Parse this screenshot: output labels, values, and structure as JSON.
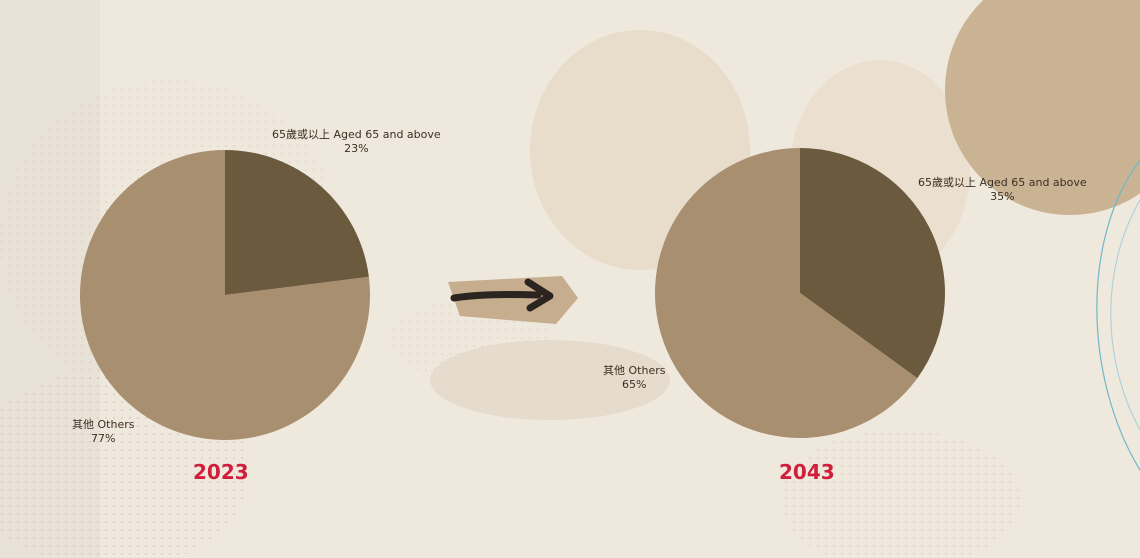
{
  "chart_data": [
    {
      "type": "pie",
      "title": "2023",
      "slices": [
        {
          "label": "65歲或以上 Aged 65 and above",
          "value": 23,
          "value_label": "23%",
          "color": "#6b5a3e"
        },
        {
          "label": "其他 Others",
          "value": 77,
          "value_label": "77%",
          "color": "#a88f70"
        }
      ]
    },
    {
      "type": "pie",
      "title": "2043",
      "slices": [
        {
          "label": "65歲或以上 Aged 65 and above",
          "value": 35,
          "value_label": "35%",
          "color": "#6b5a3e"
        },
        {
          "label": "其他 Others",
          "value": 65,
          "value_label": "65%",
          "color": "#a88f70"
        }
      ]
    }
  ],
  "colors": {
    "year_text": "#d01f3c",
    "background": "#efe8dc",
    "arrow": "#2b2420",
    "arrow_backing": "#c5ad8e"
  }
}
